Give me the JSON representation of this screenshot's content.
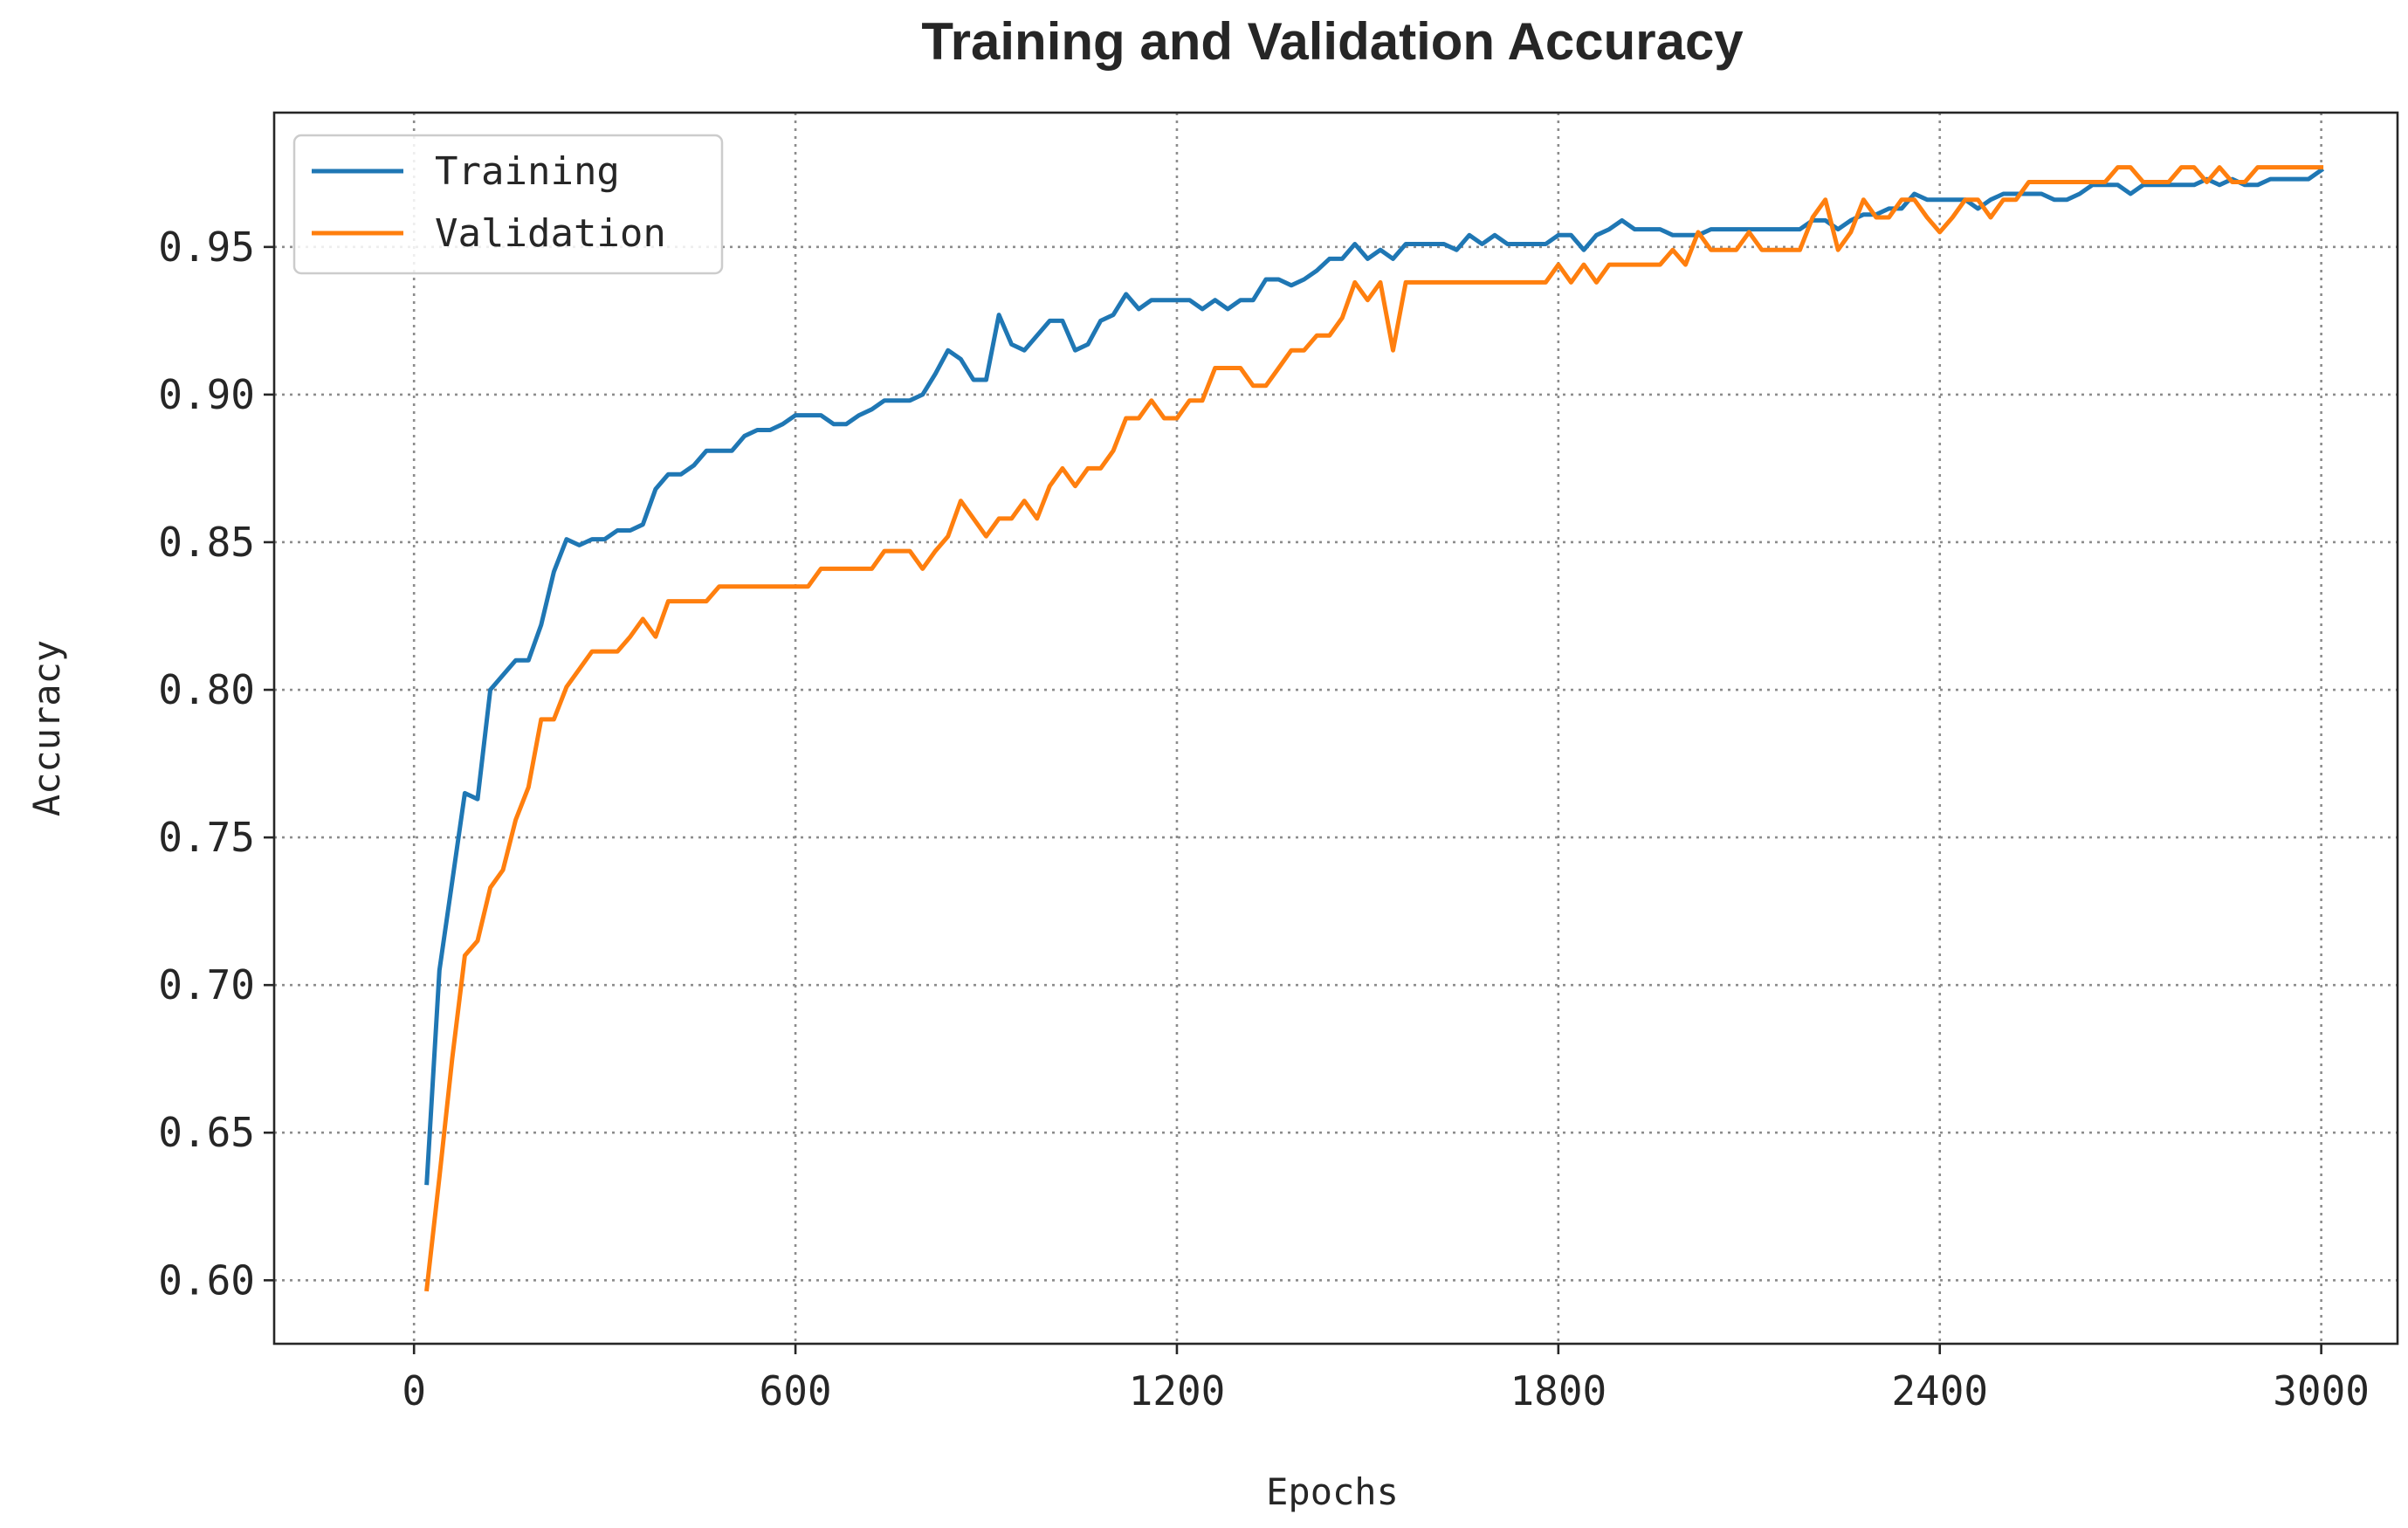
{
  "chart_data": {
    "type": "line",
    "title": "Training and Validation Accuracy",
    "xlabel": "Epochs",
    "ylabel": "Accuracy",
    "xlim": [
      -220,
      3120
    ],
    "ylim": [
      0.5785,
      0.9955
    ],
    "xticks": [
      0,
      600,
      1200,
      1800,
      2400,
      3000
    ],
    "xtick_labels": [
      "0",
      "600",
      "1200",
      "1800",
      "2400",
      "3000"
    ],
    "yticks": [
      0.6,
      0.65,
      0.7,
      0.75,
      0.8,
      0.85,
      0.9,
      0.95
    ],
    "ytick_labels": [
      "0.60",
      "0.65",
      "0.70",
      "0.75",
      "0.80",
      "0.85",
      "0.90",
      "0.95"
    ],
    "grid": true,
    "legend_position": "top-left",
    "series": [
      {
        "name": "Training",
        "color": "#1f77b4",
        "x": [
          20,
          40,
          60,
          80,
          100,
          120,
          140,
          160,
          180,
          200,
          220,
          240,
          260,
          280,
          300,
          320,
          340,
          360,
          380,
          400,
          420,
          440,
          460,
          480,
          500,
          520,
          540,
          560,
          580,
          600,
          620,
          640,
          660,
          680,
          700,
          720,
          740,
          760,
          780,
          800,
          820,
          840,
          860,
          880,
          900,
          920,
          940,
          960,
          980,
          1000,
          1020,
          1040,
          1060,
          1080,
          1100,
          1120,
          1140,
          1160,
          1180,
          1200,
          1220,
          1240,
          1260,
          1280,
          1300,
          1320,
          1340,
          1360,
          1380,
          1400,
          1420,
          1440,
          1460,
          1480,
          1500,
          1520,
          1540,
          1560,
          1580,
          1600,
          1620,
          1640,
          1660,
          1680,
          1700,
          1720,
          1740,
          1760,
          1780,
          1800,
          1820,
          1840,
          1860,
          1880,
          1900,
          1920,
          1940,
          1960,
          1980,
          2000,
          2020,
          2040,
          2060,
          2080,
          2100,
          2120,
          2140,
          2160,
          2180,
          2200,
          2220,
          2240,
          2260,
          2280,
          2300,
          2320,
          2340,
          2360,
          2380,
          2400,
          2420,
          2440,
          2460,
          2480,
          2500,
          2520,
          2540,
          2560,
          2580,
          2600,
          2620,
          2640,
          2660,
          2680,
          2700,
          2720,
          2740,
          2760,
          2780,
          2800,
          2820,
          2840,
          2860,
          2880,
          2900,
          2920,
          2940,
          2960,
          2980,
          3000
        ],
        "values": [
          0.633,
          0.705,
          0.735,
          0.765,
          0.763,
          0.8,
          0.805,
          0.81,
          0.81,
          0.822,
          0.84,
          0.851,
          0.849,
          0.851,
          0.851,
          0.854,
          0.854,
          0.856,
          0.868,
          0.873,
          0.873,
          0.876,
          0.881,
          0.881,
          0.881,
          0.886,
          0.888,
          0.888,
          0.89,
          0.893,
          0.893,
          0.893,
          0.89,
          0.89,
          0.893,
          0.895,
          0.898,
          0.898,
          0.898,
          0.9,
          0.907,
          0.915,
          0.912,
          0.905,
          0.905,
          0.927,
          0.917,
          0.915,
          0.92,
          0.925,
          0.925,
          0.915,
          0.917,
          0.925,
          0.927,
          0.934,
          0.929,
          0.932,
          0.932,
          0.932,
          0.932,
          0.929,
          0.932,
          0.929,
          0.932,
          0.932,
          0.939,
          0.939,
          0.937,
          0.939,
          0.942,
          0.946,
          0.946,
          0.951,
          0.946,
          0.949,
          0.946,
          0.951,
          0.951,
          0.951,
          0.951,
          0.949,
          0.954,
          0.951,
          0.954,
          0.951,
          0.951,
          0.951,
          0.951,
          0.954,
          0.954,
          0.949,
          0.954,
          0.956,
          0.959,
          0.956,
          0.956,
          0.956,
          0.954,
          0.954,
          0.954,
          0.956,
          0.956,
          0.956,
          0.956,
          0.956,
          0.956,
          0.956,
          0.956,
          0.959,
          0.959,
          0.956,
          0.959,
          0.961,
          0.961,
          0.963,
          0.963,
          0.968,
          0.966,
          0.966,
          0.966,
          0.966,
          0.963,
          0.966,
          0.968,
          0.968,
          0.968,
          0.968,
          0.966,
          0.966,
          0.968,
          0.971,
          0.971,
          0.971,
          0.968,
          0.971,
          0.971,
          0.971,
          0.971,
          0.971,
          0.973,
          0.971,
          0.973,
          0.971,
          0.971,
          0.973,
          0.973,
          0.973,
          0.973,
          0.976
        ]
      },
      {
        "name": "Validation",
        "color": "#ff7f0e",
        "x": [
          20,
          40,
          60,
          80,
          100,
          120,
          140,
          160,
          180,
          200,
          220,
          240,
          260,
          280,
          300,
          320,
          340,
          360,
          380,
          400,
          420,
          440,
          460,
          480,
          500,
          520,
          540,
          560,
          580,
          600,
          620,
          640,
          660,
          680,
          700,
          720,
          740,
          760,
          780,
          800,
          820,
          840,
          860,
          880,
          900,
          920,
          940,
          960,
          980,
          1000,
          1020,
          1040,
          1060,
          1080,
          1100,
          1120,
          1140,
          1160,
          1180,
          1200,
          1220,
          1240,
          1260,
          1280,
          1300,
          1320,
          1340,
          1360,
          1380,
          1400,
          1420,
          1440,
          1460,
          1480,
          1500,
          1520,
          1540,
          1560,
          1580,
          1600,
          1620,
          1640,
          1660,
          1680,
          1700,
          1720,
          1740,
          1760,
          1780,
          1800,
          1820,
          1840,
          1860,
          1880,
          1900,
          1920,
          1940,
          1960,
          1980,
          2000,
          2020,
          2040,
          2060,
          2080,
          2100,
          2120,
          2140,
          2160,
          2180,
          2200,
          2220,
          2240,
          2260,
          2280,
          2300,
          2320,
          2340,
          2360,
          2380,
          2400,
          2420,
          2440,
          2460,
          2480,
          2500,
          2520,
          2540,
          2560,
          2580,
          2600,
          2620,
          2640,
          2660,
          2680,
          2700,
          2720,
          2740,
          2760,
          2780,
          2800,
          2820,
          2840,
          2860,
          2880,
          2900,
          2920,
          2940,
          2960,
          2980,
          3000
        ],
        "values": [
          0.597,
          0.635,
          0.675,
          0.71,
          0.715,
          0.733,
          0.739,
          0.756,
          0.767,
          0.79,
          0.79,
          0.801,
          0.807,
          0.813,
          0.813,
          0.813,
          0.818,
          0.824,
          0.818,
          0.83,
          0.83,
          0.83,
          0.83,
          0.835,
          0.835,
          0.835,
          0.835,
          0.835,
          0.835,
          0.835,
          0.835,
          0.841,
          0.841,
          0.841,
          0.841,
          0.841,
          0.847,
          0.847,
          0.847,
          0.841,
          0.847,
          0.852,
          0.864,
          0.858,
          0.852,
          0.858,
          0.858,
          0.864,
          0.858,
          0.869,
          0.875,
          0.869,
          0.875,
          0.875,
          0.881,
          0.892,
          0.892,
          0.898,
          0.892,
          0.892,
          0.898,
          0.898,
          0.909,
          0.909,
          0.909,
          0.903,
          0.903,
          0.909,
          0.915,
          0.915,
          0.92,
          0.92,
          0.926,
          0.938,
          0.932,
          0.938,
          0.915,
          0.938,
          0.938,
          0.938,
          0.938,
          0.938,
          0.938,
          0.938,
          0.938,
          0.938,
          0.938,
          0.938,
          0.938,
          0.944,
          0.938,
          0.944,
          0.938,
          0.944,
          0.944,
          0.944,
          0.944,
          0.944,
          0.949,
          0.944,
          0.955,
          0.949,
          0.949,
          0.949,
          0.955,
          0.949,
          0.949,
          0.949,
          0.949,
          0.96,
          0.966,
          0.949,
          0.955,
          0.966,
          0.96,
          0.96,
          0.966,
          0.966,
          0.96,
          0.955,
          0.96,
          0.966,
          0.966,
          0.96,
          0.966,
          0.966,
          0.972,
          0.972,
          0.972,
          0.972,
          0.972,
          0.972,
          0.972,
          0.977,
          0.977,
          0.972,
          0.972,
          0.972,
          0.977,
          0.977,
          0.972,
          0.977,
          0.972,
          0.972,
          0.977,
          0.977,
          0.977,
          0.977,
          0.977,
          0.977
        ]
      }
    ]
  }
}
